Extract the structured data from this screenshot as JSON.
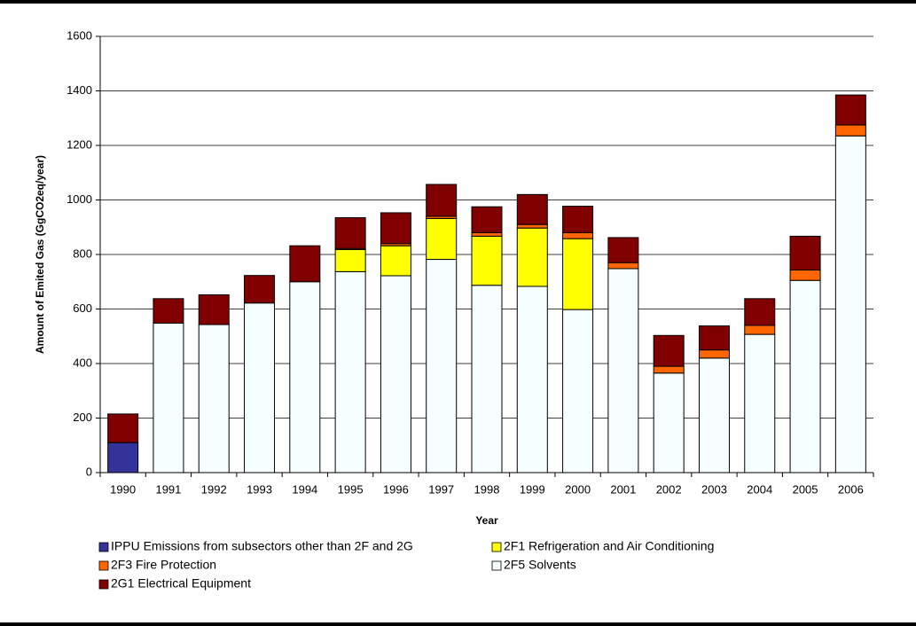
{
  "chart_data": {
    "type": "stacked_bar",
    "y_label": "Amount of Emited Gas (GgCO2eq/year)",
    "x_label": "Year",
    "categories": [
      "1990",
      "1991",
      "1992",
      "1993",
      "1994",
      "1995",
      "1996",
      "1997",
      "1998",
      "1999",
      "2000",
      "2001",
      "2002",
      "2003",
      "2004",
      "2005",
      "2006"
    ],
    "series": [
      {
        "name": "IPPU Emissions from subsectors other than 2F and 2G",
        "color": "#333399",
        "values": [
          110,
          null,
          null,
          null,
          null,
          null,
          null,
          null,
          null,
          null,
          null,
          null,
          null,
          null,
          null,
          null,
          null
        ]
      },
      {
        "name": "2F5 Solvents",
        "color": "#f6ffff",
        "values": [
          null,
          548,
          543,
          622,
          700,
          737,
          722,
          782,
          687,
          683,
          598,
          748,
          365,
          420,
          507,
          705,
          1235
        ]
      },
      {
        "name": "2F1 Refrigeration and Air Conditioning",
        "color": "#ffff00",
        "values": [
          null,
          null,
          null,
          null,
          null,
          81,
          110,
          150,
          180,
          214,
          260,
          null,
          null,
          null,
          null,
          null,
          null
        ]
      },
      {
        "name": "2F3 Fire Protection",
        "color": "#ff6600",
        "values": [
          null,
          null,
          null,
          null,
          null,
          4,
          8,
          8,
          13,
          13,
          22,
          22,
          25,
          30,
          33,
          38,
          40
        ]
      },
      {
        "name": "2G1 Electrical Equipment",
        "color": "#800000",
        "values": [
          105,
          90,
          109,
          101,
          132,
          113,
          113,
          117,
          95,
          110,
          97,
          92,
          113,
          88,
          98,
          124,
          110
        ]
      }
    ],
    "legend_order": [
      0,
      2,
      3,
      1,
      4
    ],
    "ylim": [
      0,
      1600
    ],
    "yticks": [
      0,
      200,
      400,
      600,
      800,
      1000,
      1200,
      1400,
      1600
    ],
    "grid": true
  }
}
